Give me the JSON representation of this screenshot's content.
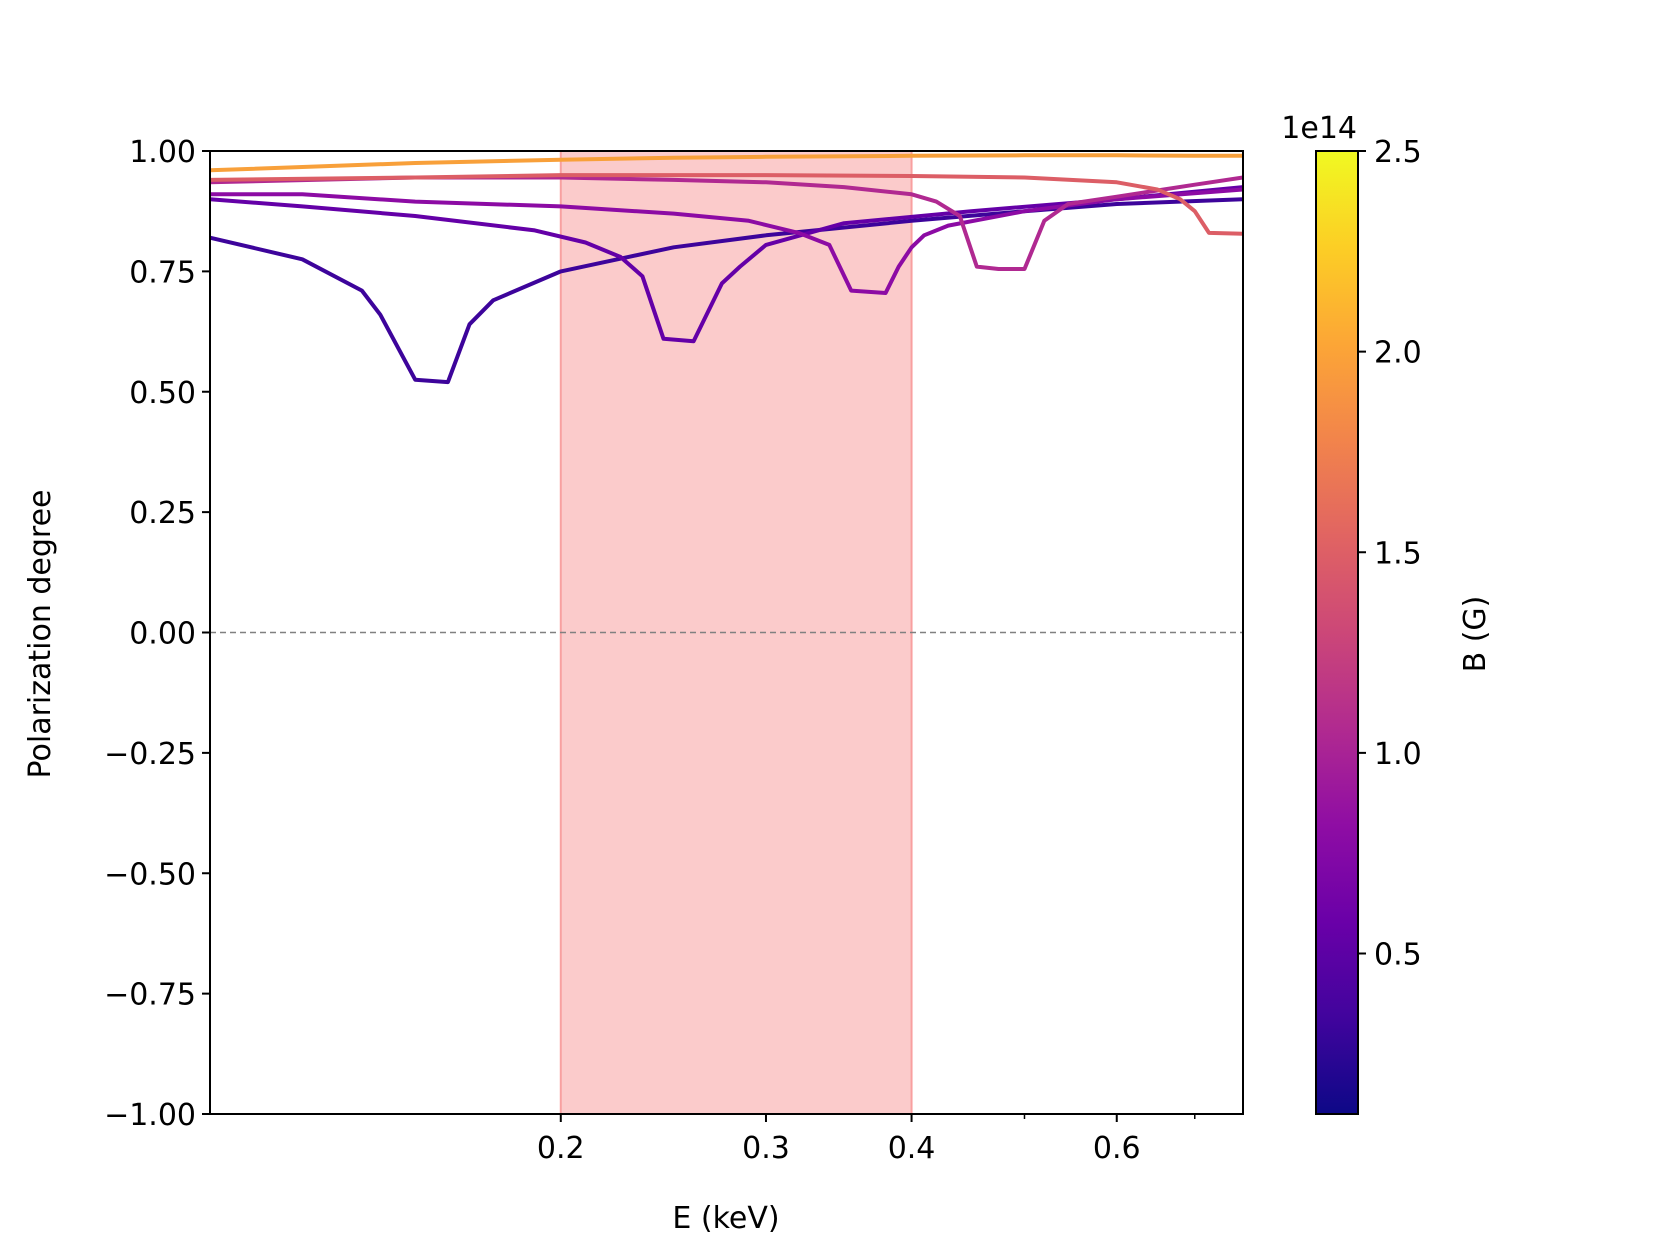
{
  "chart_data": {
    "type": "line",
    "title": "",
    "xlabel": "E (keV)",
    "ylabel": "Polarization degree",
    "x_scale": "log",
    "xlim": [
      0.1,
      0.77
    ],
    "ylim": [
      -1.0,
      1.0
    ],
    "x_ticks": [
      0.2,
      0.3,
      0.4,
      0.6
    ],
    "x_tick_labels": [
      "0.2",
      "0.3",
      "0.4",
      "0.6"
    ],
    "x_minor_ticks": [
      0.5,
      0.7
    ],
    "y_ticks": [
      1.0,
      0.75,
      0.5,
      0.25,
      0.0,
      -0.25,
      -0.5,
      -0.75,
      -1.0
    ],
    "y_tick_labels": [
      "1.00",
      "0.75",
      "0.50",
      "0.25",
      "0.00",
      "−0.25",
      "−0.50",
      "−0.75",
      "−1.00"
    ],
    "zero_line": {
      "y": 0.0,
      "color": "#808080",
      "style": "dashed"
    },
    "shaded_band": {
      "x0": 0.2,
      "x1": 0.4,
      "color": "#f8a0a0"
    },
    "colorbar": {
      "label": "B (G)",
      "exponent_label": "1e14",
      "min": 0.1,
      "max": 2.5,
      "ticks": [
        0.5,
        1.0,
        1.5,
        2.0,
        2.5
      ],
      "tick_labels": [
        "0.5",
        "1.0",
        "1.5",
        "2.0",
        "2.5"
      ],
      "colormap": "plasma",
      "colormap_colors": [
        "#0d0887",
        "#41049d",
        "#6a00a8",
        "#8f0da4",
        "#b12a90",
        "#cc4778",
        "#e16462",
        "#f2844b",
        "#fca636",
        "#fcce25",
        "#f0f921"
      ]
    },
    "series": [
      {
        "B": 0.3,
        "color": "#3d049b",
        "x": [
          0.1,
          0.12,
          0.135,
          0.14,
          0.15,
          0.16,
          0.167,
          0.175,
          0.2,
          0.25,
          0.3,
          0.4,
          0.5,
          0.6,
          0.77
        ],
        "y": [
          0.82,
          0.775,
          0.71,
          0.66,
          0.525,
          0.52,
          0.64,
          0.69,
          0.75,
          0.8,
          0.825,
          0.855,
          0.875,
          0.89,
          0.9
        ]
      },
      {
        "B": 0.6,
        "color": "#6400a7",
        "x": [
          0.1,
          0.12,
          0.15,
          0.19,
          0.21,
          0.225,
          0.235,
          0.245,
          0.26,
          0.275,
          0.285,
          0.3,
          0.35,
          0.45,
          0.6,
          0.77
        ],
        "y": [
          0.9,
          0.885,
          0.865,
          0.835,
          0.81,
          0.78,
          0.74,
          0.61,
          0.605,
          0.725,
          0.76,
          0.805,
          0.85,
          0.875,
          0.9,
          0.925
        ]
      },
      {
        "B": 0.9,
        "color": "#8c0ba4",
        "x": [
          0.1,
          0.12,
          0.15,
          0.2,
          0.25,
          0.29,
          0.32,
          0.34,
          0.355,
          0.38,
          0.39,
          0.4,
          0.41,
          0.43,
          0.5,
          0.6,
          0.77
        ],
        "y": [
          0.91,
          0.91,
          0.895,
          0.885,
          0.87,
          0.855,
          0.83,
          0.805,
          0.71,
          0.705,
          0.76,
          0.8,
          0.825,
          0.845,
          0.875,
          0.9,
          0.92
        ]
      },
      {
        "B": 1.2,
        "color": "#b02991",
        "x": [
          0.1,
          0.15,
          0.2,
          0.25,
          0.3,
          0.35,
          0.4,
          0.42,
          0.44,
          0.455,
          0.475,
          0.5,
          0.52,
          0.545,
          0.6,
          0.7,
          0.77
        ],
        "y": [
          0.935,
          0.945,
          0.945,
          0.94,
          0.935,
          0.925,
          0.91,
          0.895,
          0.865,
          0.76,
          0.755,
          0.755,
          0.855,
          0.89,
          0.905,
          0.93,
          0.945
        ]
      },
      {
        "B": 1.6,
        "color": "#dc5e66",
        "x": [
          0.1,
          0.15,
          0.2,
          0.25,
          0.3,
          0.4,
          0.5,
          0.6,
          0.65,
          0.68,
          0.7,
          0.72,
          0.77
        ],
        "y": [
          0.94,
          0.945,
          0.95,
          0.95,
          0.95,
          0.948,
          0.945,
          0.935,
          0.92,
          0.9,
          0.875,
          0.83,
          0.828
        ]
      },
      {
        "B": 2.2,
        "color": "#f8a03a",
        "x": [
          0.1,
          0.15,
          0.2,
          0.25,
          0.3,
          0.4,
          0.5,
          0.6,
          0.7,
          0.77
        ],
        "y": [
          0.96,
          0.975,
          0.982,
          0.986,
          0.988,
          0.99,
          0.991,
          0.991,
          0.99,
          0.99
        ]
      }
    ]
  }
}
